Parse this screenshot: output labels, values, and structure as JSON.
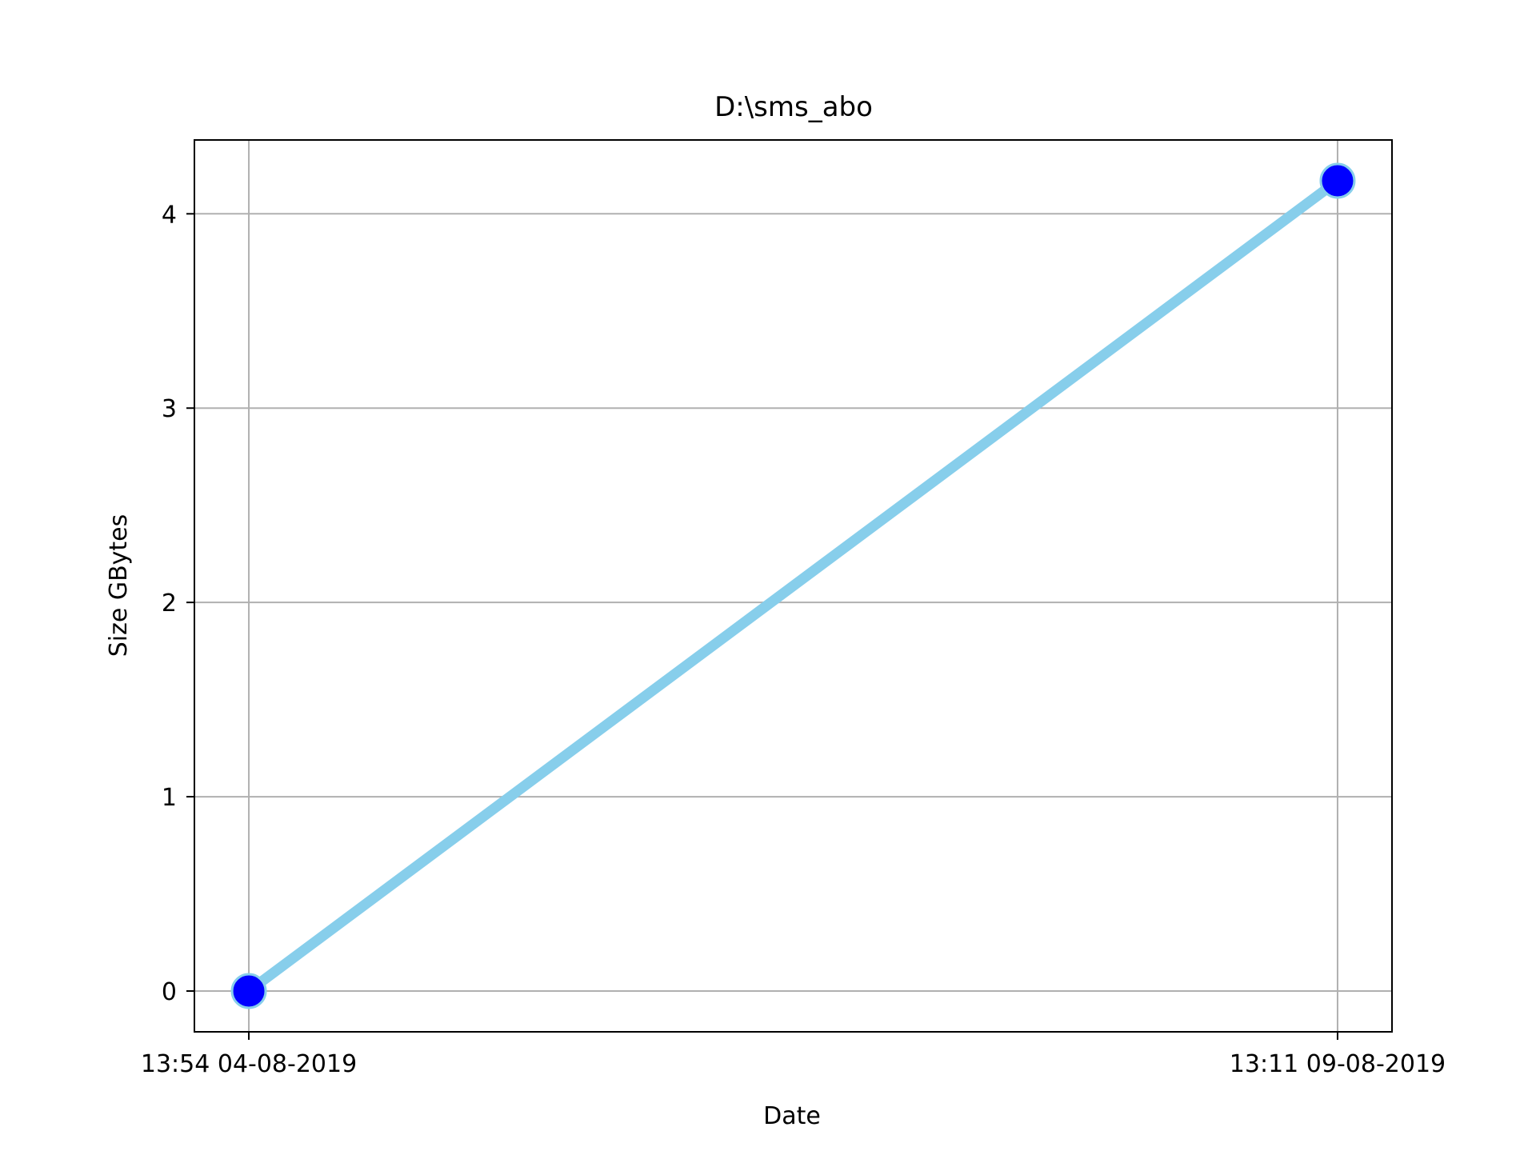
{
  "chart_data": {
    "type": "line",
    "title": "D:\\sms_abo",
    "xlabel": "Date",
    "ylabel": "Size GBytes",
    "x_ticks": [
      "13:54 04-08-2019",
      "13:11 09-08-2019"
    ],
    "y_ticks": [
      "0",
      "1",
      "2",
      "3",
      "4"
    ],
    "ylim": [
      -0.21,
      4.38
    ],
    "grid": true,
    "series": [
      {
        "x": [
          "13:54 04-08-2019",
          "13:11 09-08-2019"
        ],
        "values": [
          0.0,
          4.17
        ],
        "line_color": "#87CEEB",
        "marker_color": "#0000FF"
      }
    ]
  }
}
